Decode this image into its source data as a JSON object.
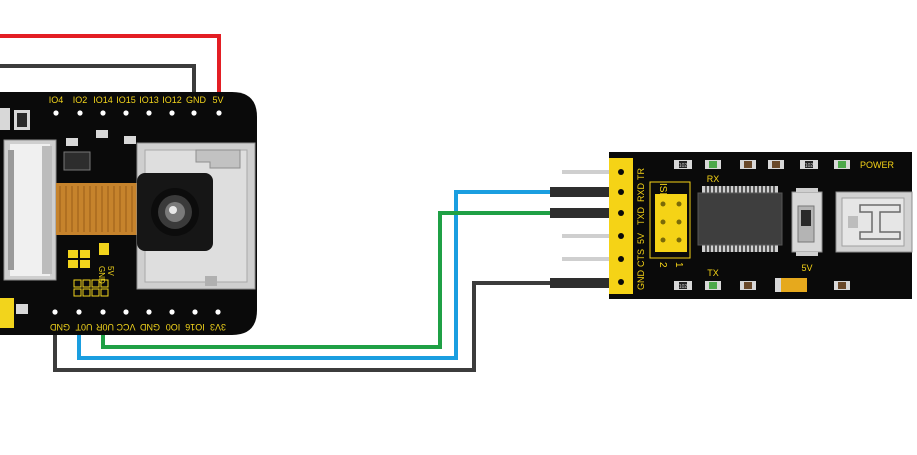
{
  "esp32cam": {
    "top_pins": [
      "IO4",
      "IO2",
      "IO14",
      "IO15",
      "IO13",
      "IO12",
      "GND",
      "5V"
    ],
    "bottom_pins": [
      "GND",
      "U0T",
      "U0R",
      "VCC",
      "GND",
      "IO0",
      "IO16",
      "3V3"
    ],
    "side_labels": [
      "GND",
      "5V"
    ]
  },
  "ftdi": {
    "pins": [
      "GND",
      "CTS",
      "5V",
      "TXD",
      "RXD",
      "TR"
    ],
    "power_label": "POWER",
    "rx_label": "RX",
    "tx_label": "TX",
    "isp_label": "ISP",
    "jumper_numbers": [
      "1",
      "2"
    ],
    "voltage_label": "5V",
    "resistor_codes": [
      "102",
      "102",
      "102"
    ]
  },
  "wire_colors": {
    "red": "#e31e24",
    "dark": "#3c3c3c",
    "blue": "#1a9ee0",
    "green": "#1fa045",
    "board": "#0a0a0a",
    "pin_text": "#f2d41c",
    "ftdi_yellow": "#f5d316"
  }
}
